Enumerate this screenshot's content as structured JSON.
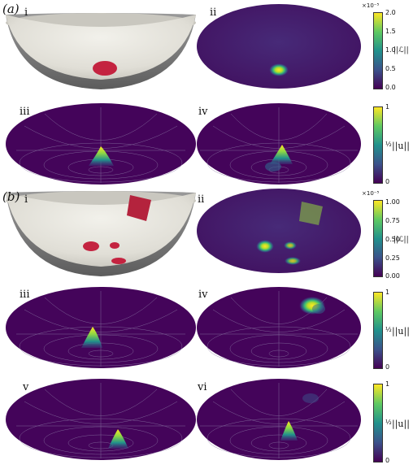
{
  "panel_a": {
    "label": "(a)",
    "sub_i": "i",
    "sub_ii": "ii",
    "sub_iii": "iii",
    "sub_iv": "iv",
    "cbar_loss": {
      "scale": "×10⁻⁵",
      "ticks": [
        "2.0",
        "1.5",
        "1.0",
        "0.5",
        "0.0"
      ],
      "name": "||ℒ||"
    },
    "cbar_u": {
      "ticks": [
        "1",
        "½",
        "0"
      ],
      "name": "||u||"
    }
  },
  "panel_b": {
    "label": "(b)",
    "sub_i": "i",
    "sub_ii": "ii",
    "sub_iii": "iii",
    "sub_iv": "iv",
    "sub_v": "v",
    "sub_vi": "vi",
    "cbar_loss": {
      "scale": "×10⁻⁵",
      "ticks": [
        "1.00",
        "0.75",
        "0.50",
        "0.25",
        "0.00"
      ],
      "name": "||ℒ||"
    },
    "cbar_u": {
      "ticks": [
        "1",
        "½",
        "0"
      ],
      "name": "||u||"
    },
    "cbar_u2": {
      "ticks": [
        "1",
        "½",
        "0"
      ],
      "name": "||u||"
    }
  },
  "colors": {
    "bowl_light": "#e4e2da",
    "bowl_rim_dark": "#707070",
    "source_red": "#c42340",
    "viridis_dark": "#440154",
    "viridis_bright": "#fde725"
  }
}
